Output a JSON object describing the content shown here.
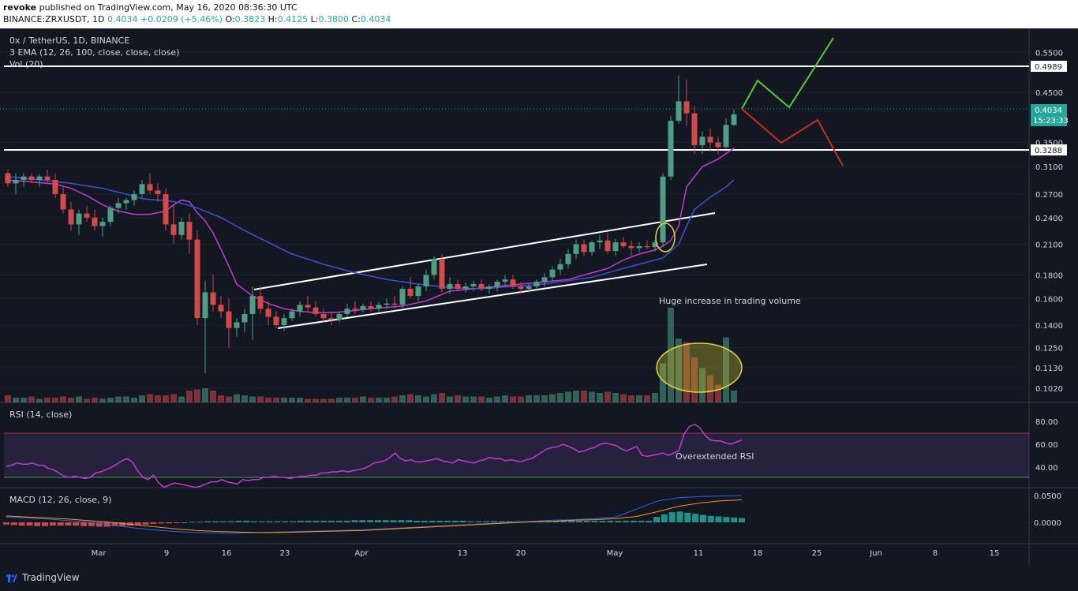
{
  "header": {
    "author": "revoke",
    "published": "published on TradingView.com, May 16, 2020 08:36:30 UTC",
    "symbol": "BINANCE:ZRXUSDT, 1D",
    "last": "0.4034",
    "change": "+0.0209 (+5.46%)",
    "ohlc": {
      "O": "0.3823",
      "H": "0.4125",
      "L": "0.3800",
      "C": "0.4034"
    }
  },
  "legend": {
    "symbol": "0x / TetherUS, 1D, BINANCE",
    "ema": "3 EMA (12, 26, 100, close, close, close)",
    "vol": "Vol (20)",
    "rsi": "RSI (14, close)",
    "macd": "MACD (12, 26, close, 9)"
  },
  "price_axis": {
    "ticks": [
      "0.5500",
      "0.4500",
      "0.3500",
      "0.3100",
      "0.2700",
      "0.2400",
      "0.2100",
      "0.1800",
      "0.1600",
      "0.1400",
      "0.1250",
      "0.1130",
      "0.1020"
    ],
    "levels": [
      {
        "label": "0.4989",
        "value": 0.4989
      },
      {
        "label": "0.3288",
        "value": 0.3288
      }
    ],
    "current_price": "0.4034",
    "countdown": "15:23:33"
  },
  "rsi_axis": {
    "ticks": [
      "80.00",
      "60.00",
      "40.00"
    ]
  },
  "macd_axis": {
    "ticks": [
      "0.0500",
      "0.0000"
    ]
  },
  "time_axis": {
    "labels": [
      "Mar",
      "9",
      "16",
      "23",
      "Apr",
      "13",
      "20",
      "May",
      "11",
      "18",
      "25",
      "Jun",
      "8",
      "15"
    ]
  },
  "annotations": {
    "volume_note": "Huge increase in trading volume",
    "rsi_note": "Overextended RSI"
  },
  "footer": {
    "brand": "TradingView"
  },
  "colors": {
    "up": "#4e9e84",
    "down": "#d24a4a",
    "ema_fast": "#c23bd4",
    "ema_slow": "#3d52d4",
    "background": "#131722"
  },
  "chart_data": {
    "type": "candlestick",
    "title": "0x / TetherUS, 1D, BINANCE",
    "scale": "log",
    "ylim": [
      0.095,
      0.62
    ],
    "x_start": "2020-02-19",
    "candles": [
      [
        0.3,
        0.305,
        0.28,
        0.285
      ],
      [
        0.285,
        0.3,
        0.27,
        0.29
      ],
      [
        0.29,
        0.3,
        0.28,
        0.295
      ],
      [
        0.295,
        0.3,
        0.285,
        0.29
      ],
      [
        0.29,
        0.298,
        0.28,
        0.295
      ],
      [
        0.295,
        0.305,
        0.285,
        0.29
      ],
      [
        0.29,
        0.3,
        0.265,
        0.27
      ],
      [
        0.27,
        0.28,
        0.245,
        0.25
      ],
      [
        0.25,
        0.26,
        0.225,
        0.232
      ],
      [
        0.232,
        0.25,
        0.22,
        0.245
      ],
      [
        0.245,
        0.255,
        0.235,
        0.24
      ],
      [
        0.24,
        0.25,
        0.225,
        0.23
      ],
      [
        0.23,
        0.24,
        0.218,
        0.235
      ],
      [
        0.235,
        0.255,
        0.23,
        0.252
      ],
      [
        0.252,
        0.265,
        0.245,
        0.258
      ],
      [
        0.258,
        0.265,
        0.25,
        0.262
      ],
      [
        0.262,
        0.275,
        0.255,
        0.27
      ],
      [
        0.27,
        0.29,
        0.265,
        0.284
      ],
      [
        0.284,
        0.3,
        0.27,
        0.275
      ],
      [
        0.275,
        0.285,
        0.26,
        0.27
      ],
      [
        0.27,
        0.278,
        0.225,
        0.232
      ],
      [
        0.232,
        0.255,
        0.21,
        0.22
      ],
      [
        0.22,
        0.24,
        0.215,
        0.235
      ],
      [
        0.235,
        0.245,
        0.2,
        0.215
      ],
      [
        0.215,
        0.225,
        0.14,
        0.145
      ],
      [
        0.145,
        0.175,
        0.11,
        0.165
      ],
      [
        0.165,
        0.18,
        0.15,
        0.155
      ],
      [
        0.155,
        0.162,
        0.145,
        0.15
      ],
      [
        0.15,
        0.16,
        0.125,
        0.138
      ],
      [
        0.138,
        0.145,
        0.132,
        0.142
      ],
      [
        0.142,
        0.152,
        0.135,
        0.148
      ],
      [
        0.148,
        0.17,
        0.13,
        0.162
      ],
      [
        0.162,
        0.17,
        0.148,
        0.152
      ],
      [
        0.152,
        0.158,
        0.14,
        0.146
      ],
      [
        0.146,
        0.15,
        0.138,
        0.14
      ],
      [
        0.14,
        0.148,
        0.136,
        0.145
      ],
      [
        0.145,
        0.152,
        0.143,
        0.15
      ],
      [
        0.15,
        0.158,
        0.146,
        0.155
      ],
      [
        0.155,
        0.162,
        0.15,
        0.153
      ],
      [
        0.153,
        0.158,
        0.146,
        0.148
      ],
      [
        0.148,
        0.152,
        0.142,
        0.145
      ],
      [
        0.145,
        0.15,
        0.14,
        0.144
      ],
      [
        0.144,
        0.15,
        0.142,
        0.148
      ],
      [
        0.148,
        0.156,
        0.146,
        0.152
      ],
      [
        0.152,
        0.158,
        0.148,
        0.151
      ],
      [
        0.151,
        0.156,
        0.149,
        0.154
      ],
      [
        0.154,
        0.158,
        0.15,
        0.152
      ],
      [
        0.152,
        0.157,
        0.15,
        0.155
      ],
      [
        0.155,
        0.16,
        0.152,
        0.156
      ],
      [
        0.156,
        0.162,
        0.152,
        0.155
      ],
      [
        0.155,
        0.17,
        0.153,
        0.168
      ],
      [
        0.168,
        0.178,
        0.16,
        0.162
      ],
      [
        0.162,
        0.172,
        0.158,
        0.17
      ],
      [
        0.17,
        0.185,
        0.166,
        0.18
      ],
      [
        0.18,
        0.198,
        0.176,
        0.195
      ],
      [
        0.195,
        0.2,
        0.165,
        0.168
      ],
      [
        0.168,
        0.178,
        0.164,
        0.172
      ],
      [
        0.172,
        0.176,
        0.166,
        0.168
      ],
      [
        0.168,
        0.173,
        0.165,
        0.17
      ],
      [
        0.17,
        0.175,
        0.166,
        0.172
      ],
      [
        0.172,
        0.176,
        0.166,
        0.168
      ],
      [
        0.168,
        0.172,
        0.164,
        0.17
      ],
      [
        0.17,
        0.176,
        0.166,
        0.174
      ],
      [
        0.174,
        0.18,
        0.17,
        0.176
      ],
      [
        0.176,
        0.18,
        0.168,
        0.17
      ],
      [
        0.17,
        0.174,
        0.164,
        0.168
      ],
      [
        0.168,
        0.172,
        0.165,
        0.17
      ],
      [
        0.17,
        0.176,
        0.166,
        0.174
      ],
      [
        0.174,
        0.182,
        0.17,
        0.178
      ],
      [
        0.178,
        0.188,
        0.174,
        0.185
      ],
      [
        0.185,
        0.195,
        0.18,
        0.19
      ],
      [
        0.19,
        0.205,
        0.186,
        0.2
      ],
      [
        0.2,
        0.215,
        0.195,
        0.21
      ],
      [
        0.21,
        0.215,
        0.198,
        0.202
      ],
      [
        0.202,
        0.214,
        0.198,
        0.212
      ],
      [
        0.212,
        0.22,
        0.205,
        0.214
      ],
      [
        0.214,
        0.222,
        0.2,
        0.203
      ],
      [
        0.203,
        0.216,
        0.198,
        0.212
      ],
      [
        0.212,
        0.218,
        0.206,
        0.208
      ],
      [
        0.208,
        0.214,
        0.198,
        0.206
      ],
      [
        0.206,
        0.212,
        0.202,
        0.208
      ],
      [
        0.208,
        0.214,
        0.205,
        0.207
      ],
      [
        0.207,
        0.215,
        0.203,
        0.212
      ],
      [
        0.212,
        0.3,
        0.208,
        0.295
      ],
      [
        0.295,
        0.4,
        0.29,
        0.39
      ],
      [
        0.39,
        0.49,
        0.385,
        0.43
      ],
      [
        0.43,
        0.48,
        0.38,
        0.405
      ],
      [
        0.405,
        0.42,
        0.33,
        0.345
      ],
      [
        0.345,
        0.37,
        0.33,
        0.36
      ],
      [
        0.36,
        0.375,
        0.335,
        0.35
      ],
      [
        0.35,
        0.36,
        0.33,
        0.342
      ],
      [
        0.342,
        0.395,
        0.338,
        0.382
      ],
      [
        0.382,
        0.413,
        0.38,
        0.403
      ]
    ],
    "ema_fast": [
      0.29,
      0.288,
      0.286,
      0.284,
      0.278,
      0.268,
      0.256,
      0.248,
      0.244,
      0.244,
      0.248,
      0.256,
      0.262,
      0.26,
      0.246,
      0.236,
      0.222,
      0.205,
      0.188,
      0.172,
      0.162,
      0.156,
      0.152,
      0.15,
      0.149,
      0.149,
      0.15,
      0.152,
      0.154,
      0.158,
      0.166,
      0.168,
      0.17,
      0.172,
      0.174,
      0.176,
      0.18,
      0.186,
      0.194,
      0.2,
      0.204,
      0.208,
      0.214,
      0.23,
      0.28,
      0.31,
      0.322,
      0.331,
      0.34
    ],
    "ema_fast_x": [
      0,
      2,
      4,
      6,
      8,
      10,
      12,
      14,
      16,
      18,
      20,
      21,
      22,
      23,
      24,
      25,
      26,
      27,
      28,
      29,
      31,
      33,
      35,
      37,
      39,
      41,
      43,
      46,
      50,
      53,
      56,
      59,
      62,
      65,
      68,
      71,
      73,
      76,
      78,
      80,
      82,
      83,
      84,
      85,
      86,
      88,
      90,
      91,
      92
    ],
    "ema_slow": [
      0.295,
      0.29,
      0.285,
      0.278,
      0.27,
      0.264,
      0.262,
      0.262,
      0.258,
      0.252,
      0.24,
      0.225,
      0.212,
      0.2,
      0.19,
      0.182,
      0.176,
      0.172,
      0.169,
      0.168,
      0.17,
      0.172,
      0.175,
      0.178,
      0.184,
      0.19,
      0.196,
      0.21,
      0.23,
      0.25,
      0.266,
      0.28,
      0.29
    ],
    "ema_slow_x": [
      0,
      4,
      8,
      12,
      15,
      17,
      19,
      20,
      22,
      24,
      27,
      30,
      33,
      36,
      40,
      44,
      48,
      52,
      56,
      60,
      64,
      68,
      71,
      74,
      77,
      80,
      83,
      85,
      86,
      87,
      89,
      91,
      92
    ],
    "volume": [
      0.6,
      0.4,
      0.4,
      0.5,
      0.3,
      0.4,
      0.4,
      0.5,
      0.4,
      0.5,
      0.3,
      0.4,
      0.3,
      0.4,
      0.5,
      0.5,
      0.4,
      0.6,
      0.7,
      0.6,
      0.6,
      0.7,
      0.5,
      1.0,
      1.1,
      1.2,
      1.0,
      0.6,
      0.5,
      0.7,
      0.6,
      0.5,
      0.5,
      0.4,
      0.4,
      0.4,
      0.4,
      0.4,
      0.3,
      0.3,
      0.3,
      0.3,
      0.4,
      0.4,
      0.4,
      0.5,
      0.4,
      0.4,
      0.4,
      0.5,
      0.6,
      0.7,
      0.6,
      0.5,
      0.7,
      0.8,
      0.5,
      0.6,
      0.5,
      0.5,
      0.5,
      0.4,
      0.5,
      0.6,
      0.5,
      0.5,
      0.6,
      0.6,
      0.6,
      0.7,
      0.8,
      0.9,
      1.0,
      1.0,
      0.9,
      0.8,
      0.9,
      0.8,
      0.7,
      0.6,
      0.6,
      0.6,
      0.8,
      3.3,
      8.0,
      5.4,
      5.1,
      3.8,
      2.9,
      2.3,
      1.5,
      5.5,
      1.0
    ],
    "rsi": [
      50,
      51,
      53,
      52,
      52,
      53,
      51,
      51,
      48,
      47,
      44,
      41,
      40,
      41,
      40,
      39,
      40,
      44,
      45,
      47,
      49,
      52,
      55,
      57,
      54,
      46,
      40,
      38,
      42,
      35,
      31,
      33,
      35,
      34,
      33,
      32,
      31,
      32,
      34,
      36,
      36,
      38,
      36,
      35,
      34,
      38,
      37,
      38,
      38,
      40,
      40,
      41,
      40,
      40,
      39,
      40,
      41,
      41,
      42,
      42,
      44,
      44,
      45,
      45,
      46,
      45,
      46,
      47,
      48,
      50,
      53,
      54,
      55,
      58,
      62,
      57,
      55,
      56,
      54,
      54,
      55,
      56,
      57,
      55,
      54,
      53,
      56,
      55,
      54,
      53,
      55,
      56,
      58,
      57,
      57,
      55,
      56,
      55,
      54,
      56,
      57,
      60,
      63,
      66,
      67,
      68,
      70,
      68,
      66,
      63,
      64,
      66,
      67,
      70,
      71,
      70,
      69,
      66,
      64,
      66,
      68,
      60,
      59,
      60,
      61,
      62,
      60,
      62,
      64,
      79,
      86,
      88,
      85,
      78,
      74,
      73,
      73,
      71,
      70,
      72,
      74
    ],
    "macd": [
      0.01,
      0.008,
      0.006,
      0.003,
      0.0,
      -0.005,
      -0.01,
      -0.014,
      -0.017,
      -0.019,
      -0.02,
      -0.02,
      -0.019,
      -0.018,
      -0.017,
      -0.016,
      -0.015,
      -0.014,
      -0.012,
      -0.01,
      -0.008,
      -0.006,
      -0.004,
      -0.002,
      0.0,
      0.002,
      0.004,
      0.005,
      0.007,
      0.01,
      0.025,
      0.04,
      0.046,
      0.048,
      0.049,
      0.05
    ],
    "macd_signal": [
      0.012,
      0.01,
      0.008,
      0.006,
      0.003,
      0.0,
      -0.004,
      -0.008,
      -0.012,
      -0.015,
      -0.017,
      -0.018,
      -0.019,
      -0.019,
      -0.018,
      -0.017,
      -0.016,
      -0.015,
      -0.013,
      -0.011,
      -0.009,
      -0.007,
      -0.005,
      -0.003,
      -0.001,
      0.001,
      0.002,
      0.004,
      0.005,
      0.007,
      0.011,
      0.02,
      0.03,
      0.036,
      0.04,
      0.042
    ],
    "macd_hist": [
      -0.004,
      -0.005,
      -0.006,
      -0.006,
      -0.007,
      -0.007,
      -0.006,
      -0.006,
      -0.006,
      -0.006,
      -0.007,
      -0.007,
      -0.008,
      -0.008,
      -0.007,
      -0.007,
      -0.006,
      -0.005,
      -0.004,
      -0.003,
      -0.002,
      -0.002,
      -0.001,
      0.0,
      0.001,
      0.001,
      0.002,
      0.002,
      0.002,
      0.002,
      0.003,
      0.003,
      0.002,
      0.002,
      0.002,
      0.002,
      0.002,
      0.002,
      0.003,
      0.003,
      0.003,
      0.003,
      0.003,
      0.003,
      0.003,
      0.004,
      0.004,
      0.004,
      0.004,
      0.004,
      0.004,
      0.004,
      0.004,
      0.003,
      0.003,
      0.003,
      0.003,
      0.003,
      0.003,
      0.003,
      0.002,
      0.002,
      0.002,
      0.002,
      0.002,
      0.002,
      0.002,
      0.002,
      0.002,
      0.002,
      0.002,
      0.002,
      0.003,
      0.003,
      0.003,
      0.003,
      0.003,
      0.003,
      0.003,
      0.003,
      0.003,
      0.003,
      0.003,
      0.003,
      0.01,
      0.015,
      0.019,
      0.02,
      0.018,
      0.016,
      0.014,
      0.012,
      0.011,
      0.01,
      0.009,
      0.008
    ]
  }
}
